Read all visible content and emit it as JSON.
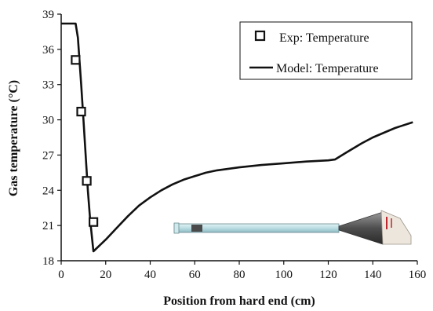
{
  "chart_data": {
    "type": "line",
    "xlabel": "Position from hard end (cm)",
    "ylabel": "Gas temperature (°C)",
    "xlim": [
      0,
      160
    ],
    "ylim": [
      18,
      39
    ],
    "xticks": [
      "0",
      "20",
      "40",
      "60",
      "80",
      "100",
      "120",
      "140",
      "160"
    ],
    "yticks": [
      "18",
      "21",
      "24",
      "27",
      "30",
      "33",
      "36",
      "39"
    ],
    "legend_position": "top-right",
    "grid": false,
    "series": [
      {
        "name": "Exp: Temperature",
        "kind": "scatter",
        "marker": "open-square",
        "x": [
          6.5,
          9.0,
          11.5,
          14.5
        ],
        "y": [
          35.1,
          30.7,
          24.8,
          21.3
        ]
      },
      {
        "name": "Model: Temperature",
        "kind": "line",
        "x": [
          0,
          6.5,
          7.5,
          9,
          10,
          11,
          12,
          13,
          14.5,
          20,
          25,
          30,
          35,
          40,
          45,
          50,
          55,
          60,
          65,
          70,
          80,
          90,
          100,
          110,
          120,
          123,
          128,
          135,
          140,
          145,
          150,
          158
        ],
        "y": [
          38.2,
          38.2,
          37.0,
          33.0,
          30.0,
          27.0,
          24.0,
          21.5,
          18.8,
          19.8,
          20.8,
          21.8,
          22.7,
          23.4,
          24.0,
          24.5,
          24.9,
          25.2,
          25.5,
          25.7,
          25.95,
          26.15,
          26.3,
          26.45,
          26.55,
          26.62,
          27.2,
          28.0,
          28.5,
          28.9,
          29.3,
          29.8
        ]
      }
    ]
  },
  "colors": {
    "line": "#111111",
    "marker": "#111111",
    "tube": "#b9dde3",
    "tube_dark": "#4a4a4a",
    "cone": "#5f5f5f",
    "holder": "#e8e2d8",
    "red_mark": "#c0262e"
  }
}
